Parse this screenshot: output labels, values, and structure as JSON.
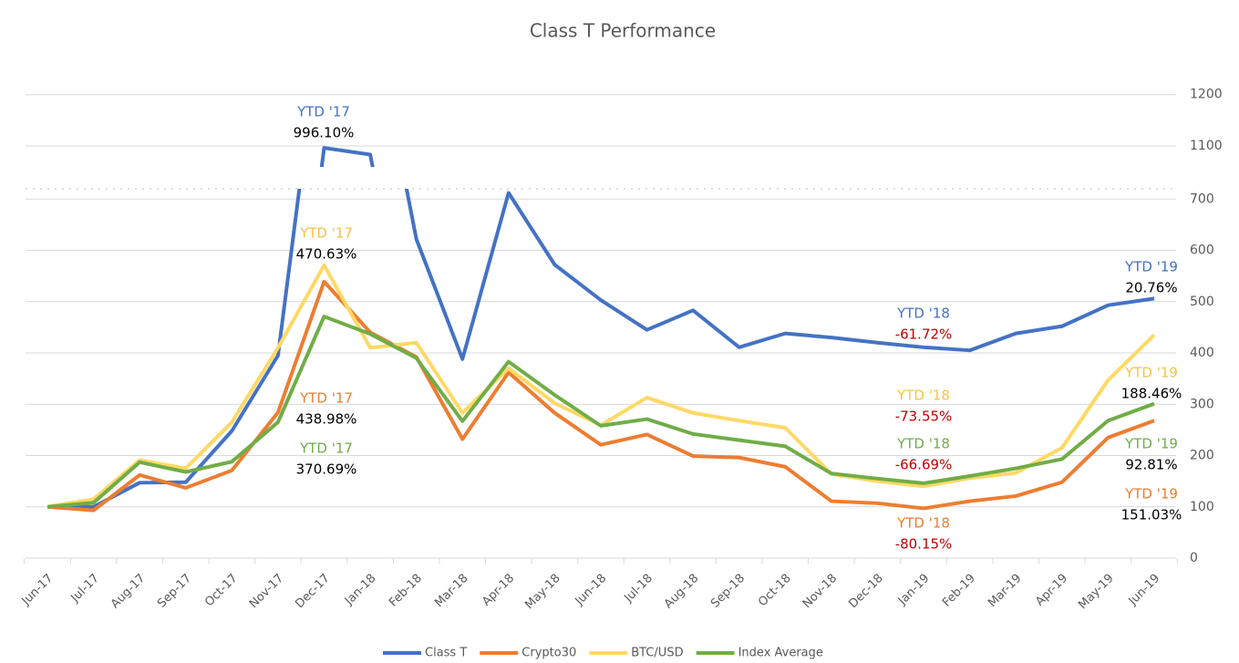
{
  "chart_data": {
    "type": "line",
    "title": "Class T Performance",
    "categories": [
      "Jun-17",
      "Jul-17",
      "Aug-17",
      "Sep-17",
      "Oct-17",
      "Nov-17",
      "Dec-17",
      "Jan-18",
      "Feb-18",
      "Mar-18",
      "Apr-18",
      "May-18",
      "Jun-18",
      "Jul-18",
      "Aug-18",
      "Sep-18",
      "Oct-18",
      "Nov-18",
      "Dec-18",
      "Jan-19",
      "Feb-19",
      "Mar-19",
      "Apr-19",
      "May-19",
      "Jun-19"
    ],
    "series": [
      {
        "name": "Class T",
        "color": "#4472c4",
        "values": [
          100,
          100,
          147,
          148,
          248,
          395,
          1096,
          1083,
          622,
          388,
          712,
          572,
          503,
          445,
          483,
          411,
          438,
          430,
          420,
          411,
          405,
          438,
          452,
          493,
          506
        ]
      },
      {
        "name": "Crypto30",
        "color": "#ed7d31",
        "values": [
          100,
          93,
          162,
          137,
          171,
          284,
          539,
          440,
          392,
          232,
          362,
          283,
          221,
          241,
          199,
          196,
          178,
          111,
          107,
          97,
          111,
          121,
          148,
          235,
          268
        ]
      },
      {
        "name": "BTC/USD",
        "color": "#ffd966",
        "values": [
          100,
          115,
          191,
          175,
          265,
          410,
          571,
          410,
          420,
          283,
          370,
          302,
          259,
          313,
          283,
          268,
          254,
          164,
          150,
          140,
          156,
          166,
          215,
          347,
          435
        ]
      },
      {
        "name": "Index Average",
        "color": "#70ad47",
        "values": [
          100,
          108,
          187,
          168,
          188,
          265,
          471,
          437,
          390,
          267,
          383,
          318,
          258,
          271,
          242,
          230,
          218,
          165,
          155,
          146,
          160,
          175,
          193,
          268,
          301
        ]
      }
    ],
    "ylim": [
      0,
      1220
    ],
    "axis_break": [
      720,
      1059
    ],
    "yticks": [
      0,
      100,
      200,
      300,
      400,
      500,
      600,
      700,
      1100,
      1200
    ],
    "grid": true,
    "legend": "bottom",
    "annotations": [
      {
        "label": "YTD '17",
        "value": "996.10%",
        "color": "#4472c4",
        "value_color": "#000000"
      },
      {
        "label": "YTD '17",
        "value": "470.63%",
        "color": "#f5c342",
        "value_color": "#000000"
      },
      {
        "label": "YTD '17",
        "value": "438.98%",
        "color": "#ed7d31",
        "value_color": "#000000"
      },
      {
        "label": "YTD '17",
        "value": "370.69%",
        "color": "#70ad47",
        "value_color": "#000000"
      },
      {
        "label": "YTD '18",
        "value": "-61.72%",
        "color": "#4472c4",
        "value_color": "#c00000"
      },
      {
        "label": "YTD '18",
        "value": "-73.55%",
        "color": "#f5c342",
        "value_color": "#c00000"
      },
      {
        "label": "YTD '18",
        "value": "-66.69%",
        "color": "#70ad47",
        "value_color": "#c00000"
      },
      {
        "label": "YTD '18",
        "value": "-80.15%",
        "color": "#ed7d31",
        "value_color": "#c00000"
      },
      {
        "label": "YTD '19",
        "value": "20.76%",
        "color": "#4472c4",
        "value_color": "#000000"
      },
      {
        "label": "YTD '19",
        "value": "188.46%",
        "color": "#f5c342",
        "value_color": "#000000"
      },
      {
        "label": "YTD '19",
        "value": "92.81%",
        "color": "#70ad47",
        "value_color": "#000000"
      },
      {
        "label": "YTD '19",
        "value": "151.03%",
        "color": "#ed7d31",
        "value_color": "#000000"
      }
    ]
  }
}
